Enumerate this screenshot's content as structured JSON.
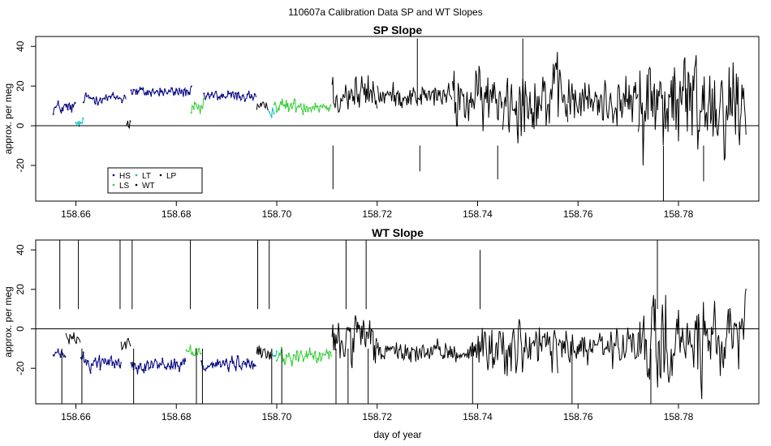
{
  "suptitle": "110607a   Calibration Data SP and WT Slopes",
  "x_axis_label": "day of year",
  "legend": [
    {
      "key": "HS",
      "color": "#000080"
    },
    {
      "key": "LT",
      "color": "#00bfbf"
    },
    {
      "key": "LP",
      "color": "#000000"
    },
    {
      "key": "LS",
      "color": "#33cc33"
    },
    {
      "key": "WT",
      "color": "#000000"
    }
  ],
  "chart_data": [
    {
      "type": "line",
      "title": "SP Slope",
      "xlabel": "",
      "ylabel": "approx. per meg",
      "xlim": [
        158.652,
        158.796
      ],
      "ylim": [
        -38,
        45
      ],
      "xticks": [
        158.66,
        158.68,
        158.7,
        158.72,
        158.74,
        158.76,
        158.78
      ],
      "xtick_labels": [
        "158.66",
        "158.68",
        "158.70",
        "158.72",
        "158.74",
        "158.76",
        "158.78"
      ],
      "yticks": [
        -20,
        0,
        20,
        40
      ],
      "ytick_labels": [
        "-20",
        "0",
        "20",
        "40"
      ],
      "hline": 0,
      "legend_position": "bottom-left",
      "segments": [
        {
          "start": 158.6555,
          "end": 158.66,
          "series": "HS",
          "level": 9,
          "noise": 2.5
        },
        {
          "start": 158.66,
          "end": 158.6615,
          "series": "LT",
          "level": 1,
          "noise": 2
        },
        {
          "start": 158.6615,
          "end": 158.67,
          "series": "HS",
          "level": 14,
          "noise": 2
        },
        {
          "start": 158.67,
          "end": 158.671,
          "series": "LP",
          "level": 2,
          "noise": 3
        },
        {
          "start": 158.671,
          "end": 158.683,
          "series": "HS",
          "level": 17,
          "noise": 2
        },
        {
          "start": 158.683,
          "end": 158.6855,
          "series": "LS",
          "level": 8,
          "noise": 3
        },
        {
          "start": 158.6855,
          "end": 158.696,
          "series": "HS",
          "level": 15,
          "noise": 2
        },
        {
          "start": 158.696,
          "end": 158.6985,
          "series": "LP",
          "level": 9,
          "noise": 2
        },
        {
          "start": 158.6985,
          "end": 158.6995,
          "series": "LT",
          "level": 8,
          "noise": 2
        },
        {
          "start": 158.6995,
          "end": 158.711,
          "series": "LS",
          "level": 10,
          "noise": 2.5
        },
        {
          "start": 158.711,
          "end": 158.72,
          "series": "WT",
          "level": 16,
          "noise": 7
        },
        {
          "start": 158.72,
          "end": 158.735,
          "series": "WT",
          "level": 15,
          "noise": 4
        },
        {
          "start": 158.735,
          "end": 158.745,
          "series": "WT",
          "level": 13,
          "noise": 10
        },
        {
          "start": 158.745,
          "end": 158.758,
          "series": "WT",
          "level": 14,
          "noise": 12
        },
        {
          "start": 158.758,
          "end": 158.772,
          "series": "WT",
          "level": 12,
          "noise": 8
        },
        {
          "start": 158.772,
          "end": 158.7935,
          "series": "WT",
          "level": 12,
          "noise": 18
        }
      ],
      "spikes": [
        {
          "x": 158.7112,
          "y": -32
        },
        {
          "x": 158.728,
          "y": 44
        },
        {
          "x": 158.7285,
          "y": -23
        },
        {
          "x": 158.744,
          "y": -27
        },
        {
          "x": 158.749,
          "y": 44
        },
        {
          "x": 158.777,
          "y": -38
        },
        {
          "x": 158.785,
          "y": -28
        }
      ]
    },
    {
      "type": "line",
      "title": "WT Slope",
      "xlabel": "day of year",
      "ylabel": "approx. per meg",
      "xlim": [
        158.652,
        158.796
      ],
      "ylim": [
        -38,
        45
      ],
      "xticks": [
        158.66,
        158.68,
        158.7,
        158.72,
        158.74,
        158.76,
        158.78
      ],
      "xtick_labels": [
        "158.66",
        "158.68",
        "158.70",
        "158.72",
        "158.74",
        "158.76",
        "158.78"
      ],
      "yticks": [
        -20,
        0,
        20,
        40
      ],
      "ytick_labels": [
        "-20",
        "0",
        "20",
        "40"
      ],
      "hline": 0,
      "segments": [
        {
          "start": 158.6555,
          "end": 158.658,
          "series": "HS",
          "level": -13,
          "noise": 2
        },
        {
          "start": 158.658,
          "end": 158.661,
          "series": "LP",
          "level": -5,
          "noise": 2
        },
        {
          "start": 158.661,
          "end": 158.669,
          "series": "HS",
          "level": -17,
          "noise": 3
        },
        {
          "start": 158.669,
          "end": 158.671,
          "series": "LP",
          "level": -8,
          "noise": 2
        },
        {
          "start": 158.671,
          "end": 158.682,
          "series": "HS",
          "level": -18,
          "noise": 2.5
        },
        {
          "start": 158.682,
          "end": 158.685,
          "series": "LS",
          "level": -11,
          "noise": 3
        },
        {
          "start": 158.685,
          "end": 158.696,
          "series": "HS",
          "level": -18,
          "noise": 2.5
        },
        {
          "start": 158.696,
          "end": 158.699,
          "series": "LP",
          "level": -13,
          "noise": 3
        },
        {
          "start": 158.699,
          "end": 158.7,
          "series": "LT",
          "level": -13,
          "noise": 2
        },
        {
          "start": 158.7,
          "end": 158.711,
          "series": "LS",
          "level": -14,
          "noise": 3
        },
        {
          "start": 158.711,
          "end": 158.72,
          "series": "WT",
          "level": -6,
          "noise": 8
        },
        {
          "start": 158.72,
          "end": 158.739,
          "series": "WT",
          "level": -12,
          "noise": 3.5
        },
        {
          "start": 158.739,
          "end": 158.756,
          "series": "WT",
          "level": -10,
          "noise": 9
        },
        {
          "start": 158.756,
          "end": 158.772,
          "series": "WT",
          "level": -10,
          "noise": 7
        },
        {
          "start": 158.772,
          "end": 158.7935,
          "series": "WT",
          "level": -8,
          "noise": 14
        }
      ],
      "spikes": [
        {
          "x": 158.6568,
          "y": 45
        },
        {
          "x": 158.6572,
          "y": -38
        },
        {
          "x": 158.6605,
          "y": 45
        },
        {
          "x": 158.6612,
          "y": -38
        },
        {
          "x": 158.6688,
          "y": 45
        },
        {
          "x": 158.6712,
          "y": 45
        },
        {
          "x": 158.6715,
          "y": -38
        },
        {
          "x": 158.6828,
          "y": 45
        },
        {
          "x": 158.684,
          "y": -38
        },
        {
          "x": 158.6852,
          "y": -38
        },
        {
          "x": 158.6962,
          "y": 45
        },
        {
          "x": 158.6985,
          "y": 45
        },
        {
          "x": 158.699,
          "y": -38
        },
        {
          "x": 158.701,
          "y": -38
        },
        {
          "x": 158.7118,
          "y": -38
        },
        {
          "x": 158.7138,
          "y": 45
        },
        {
          "x": 158.7142,
          "y": -38
        },
        {
          "x": 158.7178,
          "y": 45
        },
        {
          "x": 158.7182,
          "y": -38
        },
        {
          "x": 158.739,
          "y": -38
        },
        {
          "x": 158.7405,
          "y": 40
        },
        {
          "x": 158.7588,
          "y": -38
        },
        {
          "x": 158.7745,
          "y": -38
        },
        {
          "x": 158.7758,
          "y": 45
        }
      ]
    }
  ]
}
